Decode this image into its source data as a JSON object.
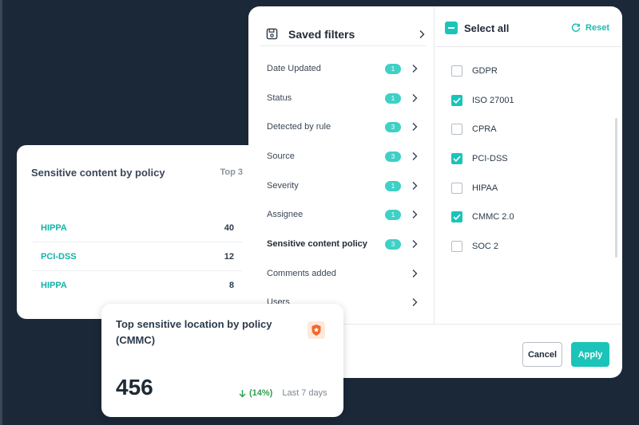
{
  "filters": {
    "saved_filters_label": "Saved filters",
    "categories": [
      {
        "label": "Date Updated",
        "badge": "1"
      },
      {
        "label": "Status",
        "badge": "1"
      },
      {
        "label": "Detected by rule",
        "badge": "3"
      },
      {
        "label": "Source",
        "badge": "3"
      },
      {
        "label": "Severity",
        "badge": "1"
      },
      {
        "label": "Assignee",
        "badge": "1"
      },
      {
        "label": "Sensitive content policy",
        "badge": "3",
        "active": true
      },
      {
        "label": "Comments added",
        "badge": ""
      },
      {
        "label": "Users",
        "badge": ""
      }
    ],
    "select_all_label": "Select all",
    "reset_label": "Reset",
    "options": [
      {
        "label": "GDPR",
        "checked": false
      },
      {
        "label": "ISO 27001",
        "checked": true
      },
      {
        "label": "CPRA",
        "checked": false
      },
      {
        "label": "PCI-DSS",
        "checked": true
      },
      {
        "label": "HIPAA",
        "checked": false
      },
      {
        "label": "CMMC 2.0",
        "checked": true
      },
      {
        "label": "SOC 2",
        "checked": false
      }
    ],
    "cancel_label": "Cancel",
    "apply_label": "Apply"
  },
  "policy_card": {
    "title": "Sensitive content by policy",
    "top_label": "Top 3",
    "rows": [
      {
        "name": "HIPPA",
        "count": "40"
      },
      {
        "name": "PCI-DSS",
        "count": "12"
      },
      {
        "name": "HIPPA",
        "count": "8"
      }
    ]
  },
  "location_card": {
    "title": "Top sensitive location by policy (CMMC)",
    "value": "456",
    "trend_percent": "(14%)",
    "trend_period": "Last 7 days"
  },
  "colors": {
    "accent": "#1bc4b8",
    "background": "#1b2838",
    "trend_down": "#2fa04f"
  },
  "icons": {
    "saved": "save-icon",
    "reset": "refresh-icon",
    "badge": "shield-badge-icon",
    "trend": "arrow-down-icon"
  }
}
